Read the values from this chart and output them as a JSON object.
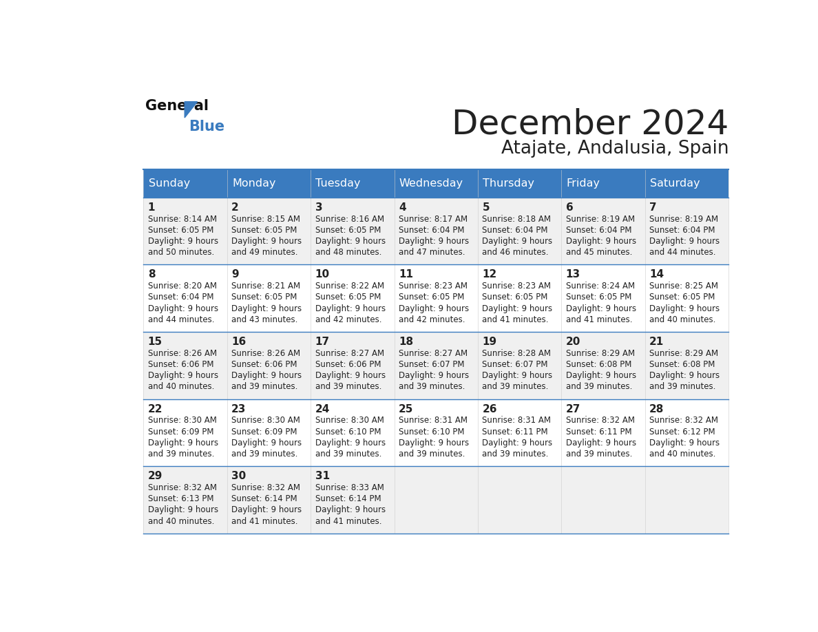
{
  "title": "December 2024",
  "subtitle": "Atajate, Andalusia, Spain",
  "header_color": "#3a7bbf",
  "header_text_color": "#ffffff",
  "bg_color": "#ffffff",
  "cell_bg_odd": "#f0f0f0",
  "cell_bg_even": "#ffffff",
  "border_color": "#3a7bbf",
  "text_color": "#222222",
  "days_of_week": [
    "Sunday",
    "Monday",
    "Tuesday",
    "Wednesday",
    "Thursday",
    "Friday",
    "Saturday"
  ],
  "calendar": [
    [
      {
        "day": 1,
        "sunrise": "8:14 AM",
        "sunset": "6:05 PM",
        "daylight1": "Daylight: 9 hours",
        "daylight2": "and 50 minutes."
      },
      {
        "day": 2,
        "sunrise": "8:15 AM",
        "sunset": "6:05 PM",
        "daylight1": "Daylight: 9 hours",
        "daylight2": "and 49 minutes."
      },
      {
        "day": 3,
        "sunrise": "8:16 AM",
        "sunset": "6:05 PM",
        "daylight1": "Daylight: 9 hours",
        "daylight2": "and 48 minutes."
      },
      {
        "day": 4,
        "sunrise": "8:17 AM",
        "sunset": "6:04 PM",
        "daylight1": "Daylight: 9 hours",
        "daylight2": "and 47 minutes."
      },
      {
        "day": 5,
        "sunrise": "8:18 AM",
        "sunset": "6:04 PM",
        "daylight1": "Daylight: 9 hours",
        "daylight2": "and 46 minutes."
      },
      {
        "day": 6,
        "sunrise": "8:19 AM",
        "sunset": "6:04 PM",
        "daylight1": "Daylight: 9 hours",
        "daylight2": "and 45 minutes."
      },
      {
        "day": 7,
        "sunrise": "8:19 AM",
        "sunset": "6:04 PM",
        "daylight1": "Daylight: 9 hours",
        "daylight2": "and 44 minutes."
      }
    ],
    [
      {
        "day": 8,
        "sunrise": "8:20 AM",
        "sunset": "6:04 PM",
        "daylight1": "Daylight: 9 hours",
        "daylight2": "and 44 minutes."
      },
      {
        "day": 9,
        "sunrise": "8:21 AM",
        "sunset": "6:05 PM",
        "daylight1": "Daylight: 9 hours",
        "daylight2": "and 43 minutes."
      },
      {
        "day": 10,
        "sunrise": "8:22 AM",
        "sunset": "6:05 PM",
        "daylight1": "Daylight: 9 hours",
        "daylight2": "and 42 minutes."
      },
      {
        "day": 11,
        "sunrise": "8:23 AM",
        "sunset": "6:05 PM",
        "daylight1": "Daylight: 9 hours",
        "daylight2": "and 42 minutes."
      },
      {
        "day": 12,
        "sunrise": "8:23 AM",
        "sunset": "6:05 PM",
        "daylight1": "Daylight: 9 hours",
        "daylight2": "and 41 minutes."
      },
      {
        "day": 13,
        "sunrise": "8:24 AM",
        "sunset": "6:05 PM",
        "daylight1": "Daylight: 9 hours",
        "daylight2": "and 41 minutes."
      },
      {
        "day": 14,
        "sunrise": "8:25 AM",
        "sunset": "6:05 PM",
        "daylight1": "Daylight: 9 hours",
        "daylight2": "and 40 minutes."
      }
    ],
    [
      {
        "day": 15,
        "sunrise": "8:26 AM",
        "sunset": "6:06 PM",
        "daylight1": "Daylight: 9 hours",
        "daylight2": "and 40 minutes."
      },
      {
        "day": 16,
        "sunrise": "8:26 AM",
        "sunset": "6:06 PM",
        "daylight1": "Daylight: 9 hours",
        "daylight2": "and 39 minutes."
      },
      {
        "day": 17,
        "sunrise": "8:27 AM",
        "sunset": "6:06 PM",
        "daylight1": "Daylight: 9 hours",
        "daylight2": "and 39 minutes."
      },
      {
        "day": 18,
        "sunrise": "8:27 AM",
        "sunset": "6:07 PM",
        "daylight1": "Daylight: 9 hours",
        "daylight2": "and 39 minutes."
      },
      {
        "day": 19,
        "sunrise": "8:28 AM",
        "sunset": "6:07 PM",
        "daylight1": "Daylight: 9 hours",
        "daylight2": "and 39 minutes."
      },
      {
        "day": 20,
        "sunrise": "8:29 AM",
        "sunset": "6:08 PM",
        "daylight1": "Daylight: 9 hours",
        "daylight2": "and 39 minutes."
      },
      {
        "day": 21,
        "sunrise": "8:29 AM",
        "sunset": "6:08 PM",
        "daylight1": "Daylight: 9 hours",
        "daylight2": "and 39 minutes."
      }
    ],
    [
      {
        "day": 22,
        "sunrise": "8:30 AM",
        "sunset": "6:09 PM",
        "daylight1": "Daylight: 9 hours",
        "daylight2": "and 39 minutes."
      },
      {
        "day": 23,
        "sunrise": "8:30 AM",
        "sunset": "6:09 PM",
        "daylight1": "Daylight: 9 hours",
        "daylight2": "and 39 minutes."
      },
      {
        "day": 24,
        "sunrise": "8:30 AM",
        "sunset": "6:10 PM",
        "daylight1": "Daylight: 9 hours",
        "daylight2": "and 39 minutes."
      },
      {
        "day": 25,
        "sunrise": "8:31 AM",
        "sunset": "6:10 PM",
        "daylight1": "Daylight: 9 hours",
        "daylight2": "and 39 minutes."
      },
      {
        "day": 26,
        "sunrise": "8:31 AM",
        "sunset": "6:11 PM",
        "daylight1": "Daylight: 9 hours",
        "daylight2": "and 39 minutes."
      },
      {
        "day": 27,
        "sunrise": "8:32 AM",
        "sunset": "6:11 PM",
        "daylight1": "Daylight: 9 hours",
        "daylight2": "and 39 minutes."
      },
      {
        "day": 28,
        "sunrise": "8:32 AM",
        "sunset": "6:12 PM",
        "daylight1": "Daylight: 9 hours",
        "daylight2": "and 40 minutes."
      }
    ],
    [
      {
        "day": 29,
        "sunrise": "8:32 AM",
        "sunset": "6:13 PM",
        "daylight1": "Daylight: 9 hours",
        "daylight2": "and 40 minutes."
      },
      {
        "day": 30,
        "sunrise": "8:32 AM",
        "sunset": "6:14 PM",
        "daylight1": "Daylight: 9 hours",
        "daylight2": "and 41 minutes."
      },
      {
        "day": 31,
        "sunrise": "8:33 AM",
        "sunset": "6:14 PM",
        "daylight1": "Daylight: 9 hours",
        "daylight2": "and 41 minutes."
      },
      null,
      null,
      null,
      null
    ]
  ]
}
